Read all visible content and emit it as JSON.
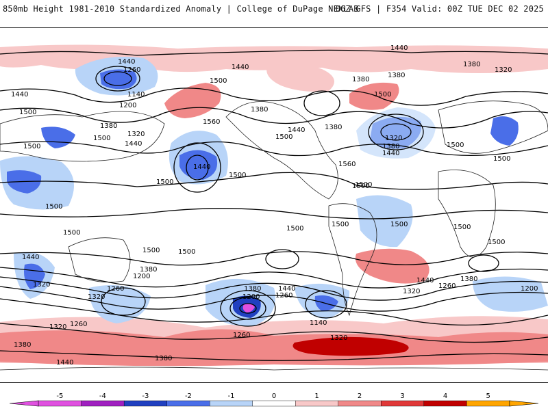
{
  "header": {
    "title": "850mb Height 1981-2010 Standardized Anomaly | College of DuPage NEXLAB",
    "valid": "06Z GFS | F354 Valid: 00Z TUE DEC 02 2025"
  },
  "map": {
    "contour_labels": [
      {
        "text": "1440"
      },
      {
        "text": "1260"
      },
      {
        "text": "1140"
      },
      {
        "text": "1200"
      },
      {
        "text": "1440"
      },
      {
        "text": "1500"
      },
      {
        "text": "1380"
      },
      {
        "text": "1320"
      },
      {
        "text": "1440"
      },
      {
        "text": "1500"
      },
      {
        "text": "1500"
      },
      {
        "text": "1560"
      },
      {
        "text": "1440"
      },
      {
        "text": "1500"
      },
      {
        "text": "1440"
      },
      {
        "text": "1380"
      },
      {
        "text": "1440"
      },
      {
        "text": "1500"
      },
      {
        "text": "1380"
      },
      {
        "text": "1380"
      },
      {
        "text": "1500"
      },
      {
        "text": "1560"
      },
      {
        "text": "1500"
      },
      {
        "text": "1440"
      },
      {
        "text": "1380"
      },
      {
        "text": "1500"
      },
      {
        "text": "1320"
      },
      {
        "text": "1380"
      },
      {
        "text": "1440"
      },
      {
        "text": "1500"
      },
      {
        "text": "1380"
      },
      {
        "text": "1320"
      },
      {
        "text": "1500"
      },
      {
        "text": "1500"
      },
      {
        "text": "1500"
      },
      {
        "text": "1500"
      },
      {
        "text": "1500"
      },
      {
        "text": "1500"
      },
      {
        "text": "1500"
      },
      {
        "text": "1500"
      },
      {
        "text": "1500"
      },
      {
        "text": "1500"
      },
      {
        "text": "1500"
      },
      {
        "text": "1500"
      },
      {
        "text": "1440"
      },
      {
        "text": "1380"
      },
      {
        "text": "1200"
      },
      {
        "text": "1320"
      },
      {
        "text": "1260"
      },
      {
        "text": "1320"
      },
      {
        "text": "1200"
      },
      {
        "text": "1380"
      },
      {
        "text": "1440"
      },
      {
        "text": "1260"
      },
      {
        "text": "1140"
      },
      {
        "text": "1320"
      },
      {
        "text": "1260"
      },
      {
        "text": "1320"
      },
      {
        "text": "1380"
      },
      {
        "text": "1440"
      },
      {
        "text": "1380"
      },
      {
        "text": "1260"
      },
      {
        "text": "1200"
      },
      {
        "text": "1380"
      },
      {
        "text": "1440"
      },
      {
        "text": "1320"
      },
      {
        "text": "1260"
      }
    ]
  },
  "legend": {
    "ticks": [
      "-5",
      "-4",
      "-3",
      "-2",
      "-1",
      "0",
      "1",
      "2",
      "3",
      "4",
      "5"
    ],
    "colors": [
      "#e050e0",
      "#a020c0",
      "#2040c0",
      "#4a6ee8",
      "#b8d4f8",
      "#ffffff",
      "#f8c8c8",
      "#f08888",
      "#e03838",
      "#c00000",
      "#ffa500"
    ]
  }
}
